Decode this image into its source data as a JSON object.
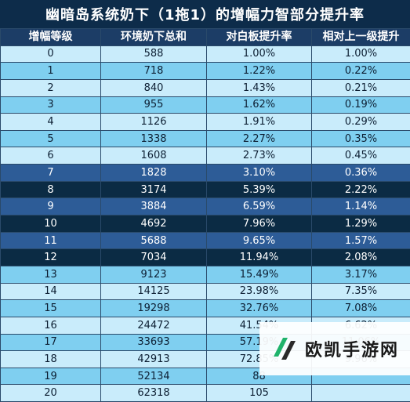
{
  "title": "幽暗岛系统奶下（1拖1）的增幅力智部分提升率",
  "headers": [
    "增幅等级",
    "环境奶下总和",
    "对白板提升率",
    "相对上一级提升"
  ],
  "rows": [
    {
      "cells": [
        "0",
        "588",
        "1.00%",
        "1.00%"
      ],
      "tone": "light"
    },
    {
      "cells": [
        "1",
        "718",
        "1.22%",
        "0.22%"
      ],
      "tone": "sky"
    },
    {
      "cells": [
        "2",
        "840",
        "1.43%",
        "0.21%"
      ],
      "tone": "light"
    },
    {
      "cells": [
        "3",
        "955",
        "1.62%",
        "0.19%"
      ],
      "tone": "sky"
    },
    {
      "cells": [
        "4",
        "1126",
        "1.91%",
        "0.29%"
      ],
      "tone": "light"
    },
    {
      "cells": [
        "5",
        "1338",
        "2.27%",
        "0.35%"
      ],
      "tone": "sky"
    },
    {
      "cells": [
        "6",
        "1608",
        "2.73%",
        "0.45%"
      ],
      "tone": "light"
    },
    {
      "cells": [
        "7",
        "1828",
        "3.10%",
        "0.36%"
      ],
      "tone": "mid"
    },
    {
      "cells": [
        "8",
        "3174",
        "5.39%",
        "2.22%"
      ],
      "tone": "deep"
    },
    {
      "cells": [
        "9",
        "3884",
        "6.59%",
        "1.14%"
      ],
      "tone": "mid"
    },
    {
      "cells": [
        "10",
        "4692",
        "7.96%",
        "1.29%"
      ],
      "tone": "deep"
    },
    {
      "cells": [
        "11",
        "5688",
        "9.65%",
        "1.57%"
      ],
      "tone": "mid"
    },
    {
      "cells": [
        "12",
        "7034",
        "11.94%",
        "2.08%"
      ],
      "tone": "deep"
    },
    {
      "cells": [
        "13",
        "9123",
        "15.49%",
        "3.17%"
      ],
      "tone": "sky"
    },
    {
      "cells": [
        "14",
        "14125",
        "23.98%",
        "7.35%"
      ],
      "tone": "light"
    },
    {
      "cells": [
        "15",
        "19298",
        "32.76%",
        "7.08%"
      ],
      "tone": "sky"
    },
    {
      "cells": [
        "16",
        "24472",
        "41.54%",
        "6.62%"
      ],
      "tone": "light"
    },
    {
      "cells": [
        "17",
        "33693",
        "57.19%",
        "11.06%"
      ],
      "tone": "sky"
    },
    {
      "cells": [
        "18",
        "42913",
        "72.85%",
        "9.96%"
      ],
      "tone": "light"
    },
    {
      "cells": [
        "19",
        "52134",
        "88",
        ""
      ],
      "tone": "sky"
    },
    {
      "cells": [
        "20",
        "62318",
        "105",
        ""
      ],
      "tone": "light"
    }
  ],
  "watermark": {
    "text": "欧凯手游网",
    "icon": "ok-logo-icon"
  },
  "colors": {
    "title_bg": "#0d2c4a",
    "header_bg": "#1c3d66",
    "light": "#c9ecfb",
    "sky": "#7fcff0",
    "mid": "#2d5c97",
    "deep": "#0b2b44",
    "logo_green": "#1fb36b"
  }
}
